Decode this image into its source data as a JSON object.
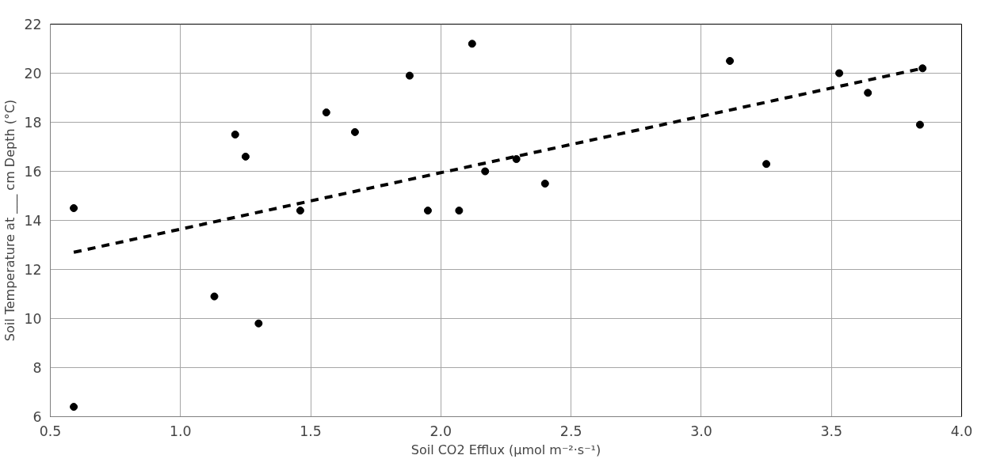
{
  "chart_data": {
    "type": "scatter",
    "xlabel": "Soil CO2 Efflux (µmol m⁻²·s⁻¹)",
    "ylabel": "Soil Temperature at ___ cm Depth (°C)",
    "xlim": [
      0.5,
      4.0
    ],
    "xticks": [
      {
        "value": 0.5,
        "label": "0.5"
      },
      {
        "value": 1.0,
        "label": "1.0"
      },
      {
        "value": 1.5,
        "label": "1.5"
      },
      {
        "value": 2.0,
        "label": "2.0"
      },
      {
        "value": 2.5,
        "label": "2.5"
      },
      {
        "value": 3.0,
        "label": "3.0"
      },
      {
        "value": 3.5,
        "label": "3.5"
      },
      {
        "value": 4.0,
        "label": "4.0"
      }
    ],
    "ylim": [
      6,
      22
    ],
    "yticks": [
      6,
      8,
      10,
      12,
      14,
      16,
      18,
      20,
      22
    ],
    "grid": true,
    "marker": "circle",
    "series": [
      {
        "color": "#000000",
        "x": [
          0.59,
          0.59,
          1.13,
          1.21,
          1.25,
          1.3,
          1.46,
          1.56,
          1.67,
          1.88,
          1.95,
          2.07,
          2.12,
          2.17,
          2.29,
          2.4,
          3.11,
          3.25,
          3.53,
          3.64,
          3.84,
          3.85
        ],
        "values": [
          14.5,
          6.4,
          10.9,
          17.5,
          16.6,
          9.8,
          14.4,
          18.4,
          17.6,
          19.9,
          14.4,
          14.4,
          21.2,
          16.0,
          16.5,
          15.5,
          20.5,
          16.3,
          20.0,
          19.2,
          17.9,
          20.2
        ]
      },
      {
        "type": "line",
        "color": "#000000",
        "line_style": "dashed",
        "marker": "none",
        "x": [
          0.59,
          3.85
        ],
        "values": [
          12.7,
          20.2
        ]
      }
    ]
  }
}
